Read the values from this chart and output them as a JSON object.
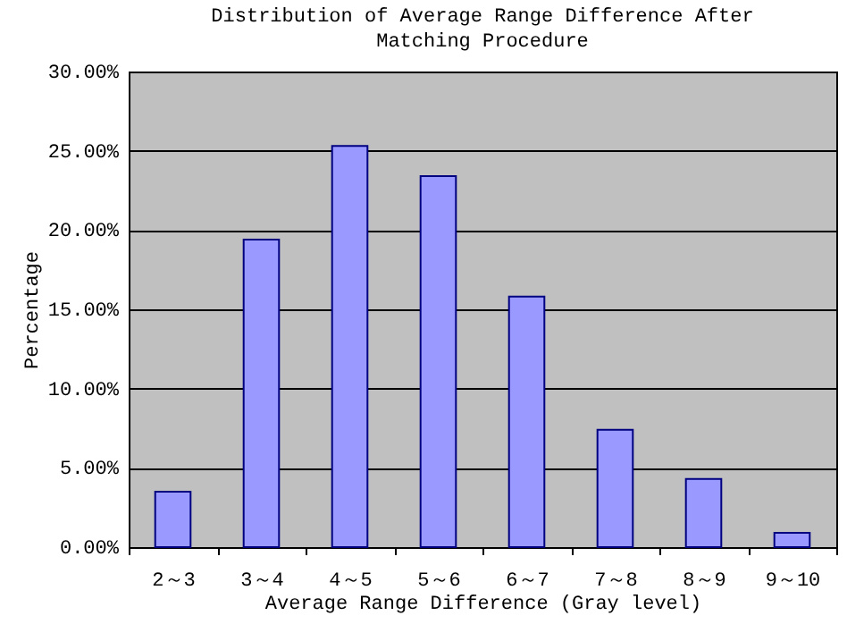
{
  "chart_data": {
    "type": "bar",
    "title": [
      "Distribution of Average Range Difference After",
      "Matching Procedure"
    ],
    "xlabel": "Average Range Difference (Gray level)",
    "ylabel": "Percentage",
    "categories": [
      "2～3",
      "3～4",
      "4～5",
      "5～6",
      "6～7",
      "7～8",
      "8～9",
      "9～10"
    ],
    "values": [
      3.5,
      19.4,
      25.3,
      23.4,
      15.8,
      7.4,
      4.3,
      0.9
    ],
    "color": "#9999ff",
    "ylim": [
      0,
      30
    ],
    "yticks": [
      {
        "value": 0,
        "label": "0.00%"
      },
      {
        "value": 5,
        "label": "5.00%"
      },
      {
        "value": 10,
        "label": "10.00%"
      },
      {
        "value": 15,
        "label": "15.00%"
      },
      {
        "value": 20,
        "label": "20.00%"
      },
      {
        "value": 25,
        "label": "25.00%"
      },
      {
        "value": 30,
        "label": "30.00%"
      }
    ],
    "grid": "y"
  }
}
